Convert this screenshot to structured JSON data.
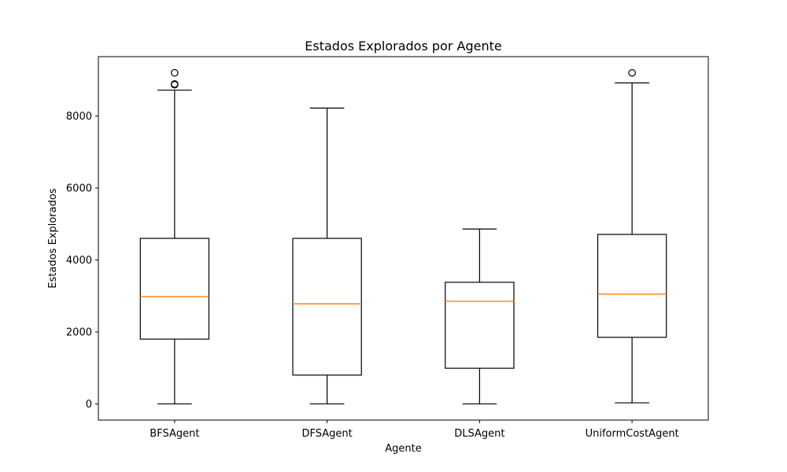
{
  "chart_data": {
    "type": "boxplot",
    "title": "Estados Explorados por Agente",
    "xlabel": "Agente",
    "ylabel": "Estados Explorados",
    "ylim": [
      -450,
      9650
    ],
    "yticks": [
      0,
      2000,
      4000,
      6000,
      8000
    ],
    "grid": false,
    "categories": [
      "BFSAgent",
      "DFSAgent",
      "DLSAgent",
      "UniformCostAgent"
    ],
    "boxes": [
      {
        "category": "BFSAgent",
        "whisker_low": 0,
        "q1": 1800,
        "median": 2980,
        "q3": 4600,
        "whisker_high": 8720,
        "outliers": [
          8870,
          8890,
          9200
        ]
      },
      {
        "category": "DFSAgent",
        "whisker_low": 0,
        "q1": 800,
        "median": 2780,
        "q3": 4600,
        "whisker_high": 8220,
        "outliers": []
      },
      {
        "category": "DLSAgent",
        "whisker_low": 0,
        "q1": 990,
        "median": 2850,
        "q3": 3380,
        "whisker_high": 4860,
        "outliers": []
      },
      {
        "category": "UniformCostAgent",
        "whisker_low": 30,
        "q1": 1850,
        "median": 3050,
        "q3": 4710,
        "whisker_high": 8920,
        "outliers": [
          9200
        ]
      }
    ],
    "colors": {
      "box": "#000000",
      "median": "#ff7f0e"
    }
  }
}
